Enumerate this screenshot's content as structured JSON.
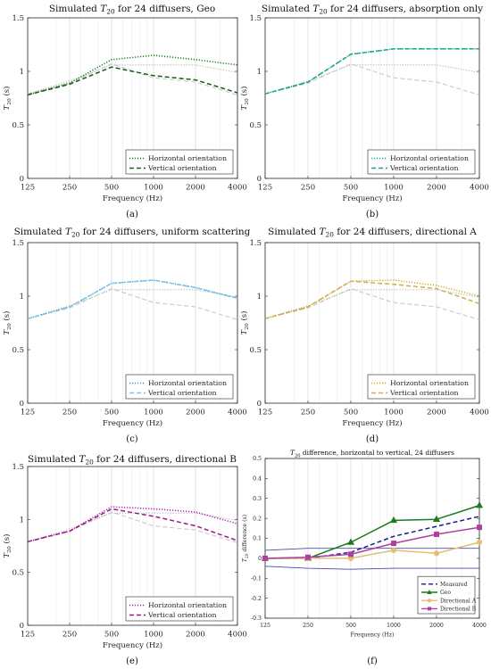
{
  "chart_data": [
    {
      "type": "line",
      "title_pre": "Simulated ",
      "title_sym": "T",
      "title_sub": "20",
      "title_post": " for 24 diffusers, Geo",
      "xlabel": "Frequency (Hz)",
      "ylabel_sym": "T",
      "ylabel_sub": "20",
      "ylabel_post": " (s)",
      "x": [
        125,
        250,
        500,
        1000,
        2000,
        4000
      ],
      "xscale": "log",
      "ylim": [
        0,
        1.5
      ],
      "yticks": [
        0,
        0.5,
        1,
        1.5
      ],
      "ytick_labels": [
        "0",
        "0.5",
        "1",
        "1.5"
      ],
      "grid": "vertical",
      "legend": "bottom-right",
      "panel_label": "(a)",
      "series": [
        {
          "name": "",
          "role": "reference",
          "color": "#b4b4b4",
          "dash": "dotted",
          "values": [
            0.79,
            0.91,
            1.06,
            1.06,
            1.06,
            0.99
          ]
        },
        {
          "name": "",
          "role": "reference",
          "color": "#c8c8c8",
          "dash": "dashed",
          "values": [
            0.79,
            0.89,
            1.07,
            0.94,
            0.9,
            0.78
          ]
        },
        {
          "name": "Horizontal orientation",
          "color": "#1d7a1d",
          "dash": "dotted",
          "values": [
            0.78,
            0.89,
            1.11,
            1.15,
            1.11,
            1.06
          ]
        },
        {
          "name": "Vertical orientation",
          "color": "#1a5a1a",
          "dash": "dashed",
          "values": [
            0.78,
            0.88,
            1.04,
            0.96,
            0.92,
            0.8
          ]
        }
      ]
    },
    {
      "type": "line",
      "title_pre": "Simulated ",
      "title_sym": "T",
      "title_sub": "20",
      "title_post": " for 24 diffusers, absorption only",
      "xlabel": "Frequency (Hz)",
      "ylabel_sym": "T",
      "ylabel_sub": "20",
      "ylabel_post": " (s)",
      "x": [
        125,
        250,
        500,
        1000,
        2000,
        4000
      ],
      "xscale": "log",
      "ylim": [
        0,
        1.5
      ],
      "yticks": [
        0,
        0.5,
        1,
        1.5
      ],
      "ytick_labels": [
        "0",
        "0.5",
        "1",
        "1.5"
      ],
      "grid": "vertical",
      "legend": "bottom-right",
      "panel_label": "(b)",
      "series": [
        {
          "name": "",
          "role": "reference",
          "color": "#b4b4b4",
          "dash": "dotted",
          "values": [
            0.79,
            0.91,
            1.06,
            1.06,
            1.06,
            0.99
          ]
        },
        {
          "name": "",
          "role": "reference",
          "color": "#c8c8c8",
          "dash": "dashed",
          "values": [
            0.79,
            0.89,
            1.07,
            0.94,
            0.9,
            0.78
          ]
        },
        {
          "name": "Horizontal orientation",
          "color": "#1aa0a0",
          "dash": "dotted",
          "values": [
            0.79,
            0.9,
            1.16,
            1.21,
            1.21,
            1.21
          ]
        },
        {
          "name": "Vertical orientation",
          "color": "#17a58c",
          "dash": "dashed",
          "values": [
            0.79,
            0.9,
            1.16,
            1.21,
            1.21,
            1.21
          ]
        }
      ]
    },
    {
      "type": "line",
      "title_pre": "Simulated ",
      "title_sym": "T",
      "title_sub": "20",
      "title_post": " for 24 diffusers, uniform scattering",
      "xlabel": "Frequency (Hz)",
      "ylabel_sym": "T",
      "ylabel_sub": "20",
      "ylabel_post": " (s)",
      "x": [
        125,
        250,
        500,
        1000,
        2000,
        4000
      ],
      "xscale": "log",
      "ylim": [
        0,
        1.5
      ],
      "yticks": [
        0,
        0.5,
        1,
        1.5
      ],
      "ytick_labels": [
        "0",
        "0.5",
        "1",
        "1.5"
      ],
      "grid": "vertical",
      "legend": "bottom-right",
      "panel_label": "(c)",
      "series": [
        {
          "name": "",
          "role": "reference",
          "color": "#b4b4b4",
          "dash": "dotted",
          "values": [
            0.79,
            0.91,
            1.06,
            1.06,
            1.06,
            0.99
          ]
        },
        {
          "name": "",
          "role": "reference",
          "color": "#c8c8c8",
          "dash": "dashed",
          "values": [
            0.79,
            0.89,
            1.07,
            0.94,
            0.9,
            0.78
          ]
        },
        {
          "name": "Horizontal orientation",
          "color": "#3d8fe0",
          "dash": "dotted",
          "values": [
            0.79,
            0.9,
            1.12,
            1.15,
            1.08,
            0.98
          ]
        },
        {
          "name": "Vertical orientation",
          "color": "#7ac4e8",
          "dash": "dashed",
          "values": [
            0.79,
            0.9,
            1.12,
            1.15,
            1.08,
            0.98
          ]
        }
      ]
    },
    {
      "type": "line",
      "title_pre": "Simulated ",
      "title_sym": "T",
      "title_sub": "20",
      "title_post": " for 24 diffusers, directional A",
      "xlabel": "Frequency (Hz)",
      "ylabel_sym": "T",
      "ylabel_sub": "20",
      "ylabel_post": " (s)",
      "x": [
        125,
        250,
        500,
        1000,
        2000,
        4000
      ],
      "xscale": "log",
      "ylim": [
        0,
        1.5
      ],
      "yticks": [
        0,
        0.5,
        1,
        1.5
      ],
      "ytick_labels": [
        "0",
        "0.5",
        "1",
        "1.5"
      ],
      "grid": "vertical",
      "legend": "bottom-right",
      "panel_label": "(d)",
      "series": [
        {
          "name": "",
          "role": "reference",
          "color": "#b4b4b4",
          "dash": "dotted",
          "values": [
            0.79,
            0.91,
            1.06,
            1.06,
            1.06,
            0.99
          ]
        },
        {
          "name": "",
          "role": "reference",
          "color": "#c8c8c8",
          "dash": "dashed",
          "values": [
            0.79,
            0.89,
            1.07,
            0.94,
            0.9,
            0.78
          ]
        },
        {
          "name": "Horizontal orientation",
          "color": "#d9a520",
          "dash": "dotted",
          "values": [
            0.79,
            0.9,
            1.14,
            1.15,
            1.1,
            1.0
          ]
        },
        {
          "name": "Vertical orientation",
          "color": "#c9b04a",
          "dash": "dashed",
          "values": [
            0.79,
            0.9,
            1.14,
            1.11,
            1.07,
            0.93
          ]
        }
      ]
    },
    {
      "type": "line",
      "title_pre": "Simulated ",
      "title_sym": "T",
      "title_sub": "20",
      "title_post": " for 24 diffusers, directional B",
      "xlabel": "Frequency (Hz)",
      "ylabel_sym": "T",
      "ylabel_sub": "20",
      "ylabel_post": " (s)",
      "x": [
        125,
        250,
        500,
        1000,
        2000,
        4000
      ],
      "xscale": "log",
      "ylim": [
        0,
        1.5
      ],
      "yticks": [
        0,
        0.5,
        1,
        1.5
      ],
      "ytick_labels": [
        "0",
        "0.5",
        "1",
        "1.5"
      ],
      "grid": "vertical",
      "legend": "bottom-right",
      "panel_label": "(e)",
      "series": [
        {
          "name": "",
          "role": "reference",
          "color": "#b4b4b4",
          "dash": "dotted",
          "values": [
            0.79,
            0.91,
            1.06,
            1.06,
            1.06,
            0.99
          ]
        },
        {
          "name": "",
          "role": "reference",
          "color": "#c8c8c8",
          "dash": "dashed",
          "values": [
            0.79,
            0.89,
            1.07,
            0.94,
            0.9,
            0.78
          ]
        },
        {
          "name": "Horizontal orientation",
          "color": "#b01cb0",
          "dash": "dotted",
          "values": [
            0.79,
            0.89,
            1.12,
            1.1,
            1.07,
            0.96
          ]
        },
        {
          "name": "Vertical orientation",
          "color": "#9a1a8a",
          "dash": "dashed",
          "values": [
            0.79,
            0.89,
            1.1,
            1.03,
            0.94,
            0.8
          ]
        }
      ]
    },
    {
      "type": "line",
      "title_sym": "T",
      "title_sub": "20",
      "title_post": " difference, horizontal to vertical, 24 diffusers",
      "xlabel": "Frequency (Hz)",
      "ylabel_sym": "T",
      "ylabel_sub": "20",
      "ylabel_post": " difference (s)",
      "x": [
        125,
        250,
        500,
        1000,
        2000,
        4000
      ],
      "xscale": "log",
      "ylim": [
        -0.3,
        0.5
      ],
      "yticks": [
        -0.3,
        -0.2,
        -0.1,
        0,
        0.1,
        0.2,
        0.3,
        0.4,
        0.5
      ],
      "ytick_labels": [
        "-0.3",
        "-0.2",
        "-0.1",
        "0",
        "0.1",
        "0.2",
        "0.3",
        "0.4",
        "0.5"
      ],
      "grid": "vertical",
      "legend": "bottom-right",
      "panel_label": "(f)",
      "series": [
        {
          "name": "",
          "role": "band",
          "color": "#4a4ab0",
          "dash": "solid",
          "values": [
            0.04,
            0.05,
            0.05,
            0.05,
            0.05,
            0.05
          ]
        },
        {
          "name": "",
          "role": "band",
          "color": "#4a4ab0",
          "dash": "solid",
          "values": [
            -0.04,
            -0.05,
            -0.055,
            -0.05,
            -0.05,
            -0.05
          ]
        },
        {
          "name": "Measured",
          "color": "#1c1c8c",
          "dash": "dashed",
          "marker": "none",
          "values": [
            0.0,
            0.0,
            0.03,
            0.11,
            0.16,
            0.21
          ]
        },
        {
          "name": "Geo",
          "color": "#1d7a1d",
          "dash": "solid",
          "marker": "triangle",
          "values": [
            0.0,
            0.0,
            0.08,
            0.19,
            0.195,
            0.265
          ]
        },
        {
          "name": "Directional A",
          "color": "#e3c070",
          "dash": "solid",
          "marker": "circle",
          "values": [
            0.0,
            0.0,
            0.0,
            0.04,
            0.025,
            0.08
          ]
        },
        {
          "name": "Directional B",
          "color": "#b040a0",
          "dash": "solid",
          "marker": "square",
          "values": [
            0.0,
            0.005,
            0.02,
            0.075,
            0.12,
            0.155
          ]
        }
      ]
    }
  ]
}
